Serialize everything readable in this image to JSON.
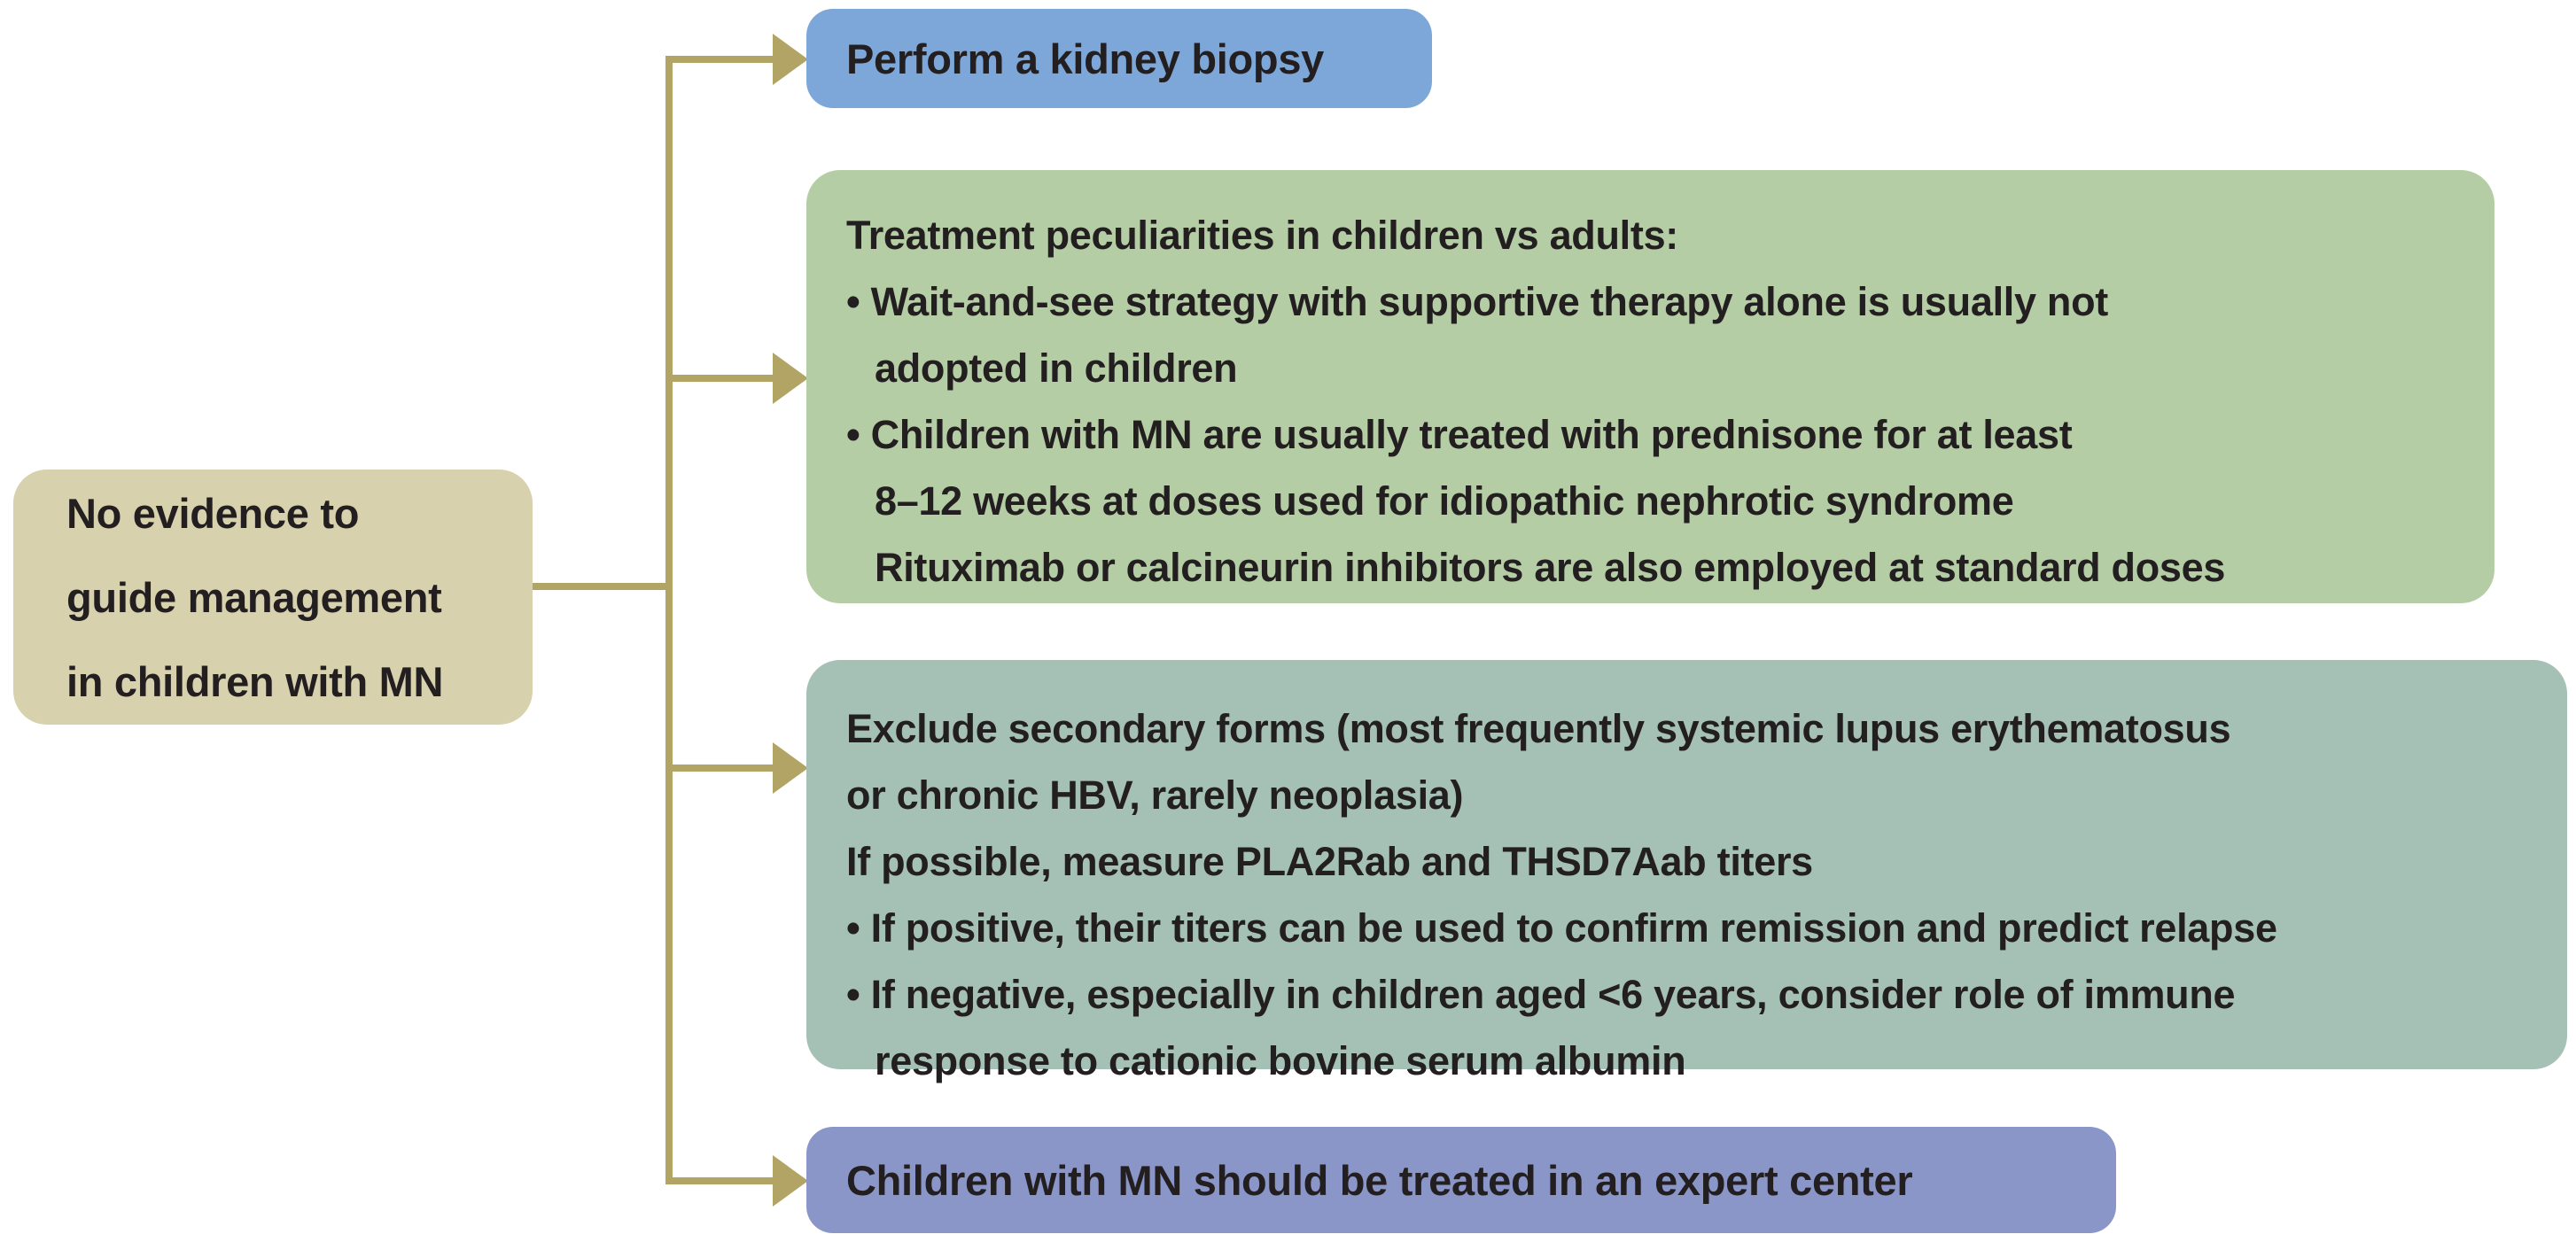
{
  "colors": {
    "background": "#ffffff",
    "text": "#231f20",
    "connector": "#b2a465",
    "root_box": "#d8d1ae",
    "biopsy_box": "#7da7d8",
    "treatment_box": "#b4cda4",
    "secondary_box": "#a5c1b6",
    "expert_box": "#8b96c8"
  },
  "root_box": {
    "lines": [
      "No evidence to",
      "guide management",
      "in children with MN"
    ]
  },
  "biopsy_box": {
    "label": "Perform a kidney biopsy"
  },
  "treatment_box": {
    "lines": [
      "Treatment peculiarities in children vs adults:",
      "• Wait-and-see strategy with supportive therapy alone is usually not",
      "adopted in children",
      "• Children with MN are usually treated with prednisone for at least",
      "8–12 weeks at doses used for idiopathic nephrotic syndrome",
      "Rituximab or calcineurin inhibitors are also employed at standard doses"
    ]
  },
  "secondary_box": {
    "lines": [
      "Exclude secondary forms (most frequently systemic lupus erythematosus",
      "or chronic HBV, rarely neoplasia)",
      "If possible, measure PLA2Rab and THSD7Aab titers",
      "• If positive, their titers can be used to confirm remission and predict relapse",
      "• If negative, especially in children aged <6 years, consider role of immune",
      "response to cationic bovine serum albumin"
    ]
  },
  "expert_box": {
    "label": "Children with MN should be treated in an expert center"
  }
}
